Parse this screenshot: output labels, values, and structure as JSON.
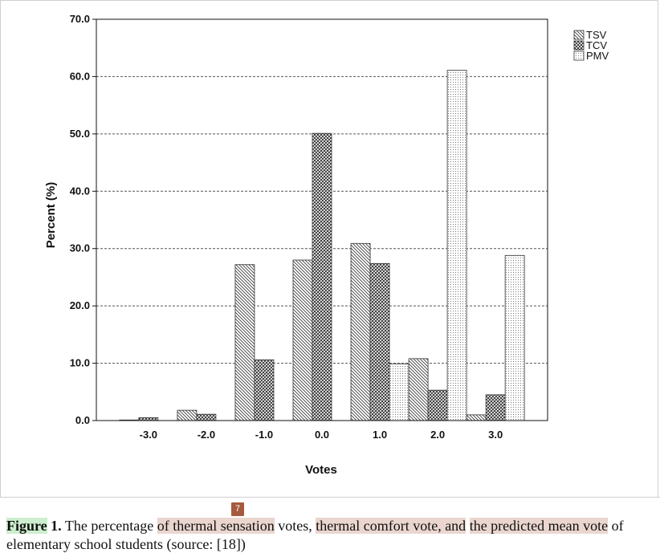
{
  "chart_data": {
    "type": "bar",
    "xlabel": "Votes",
    "ylabel": "Percent (%)",
    "categories": [
      "-3.0",
      "-2.0",
      "-1.0",
      "0.0",
      "1.0",
      "2.0",
      "3.0"
    ],
    "yticks": [
      "0.0",
      "10.0",
      "20.0",
      "30.0",
      "40.0",
      "50.0",
      "60.0",
      "70.0"
    ],
    "ylim": [
      0,
      70
    ],
    "grid": "horizontal dashed",
    "legend_position": "top-right",
    "series": [
      {
        "name": "TSV",
        "pattern": "diagonal-hatch",
        "values": [
          0.1,
          1.8,
          27.2,
          28.0,
          30.9,
          10.8,
          1.0
        ]
      },
      {
        "name": "TCV",
        "pattern": "cross-hatch",
        "values": [
          0.5,
          1.1,
          10.6,
          50.1,
          27.4,
          5.3,
          4.5
        ]
      },
      {
        "name": "PMV",
        "pattern": "dotted",
        "values": [
          0,
          0,
          0,
          0,
          9.9,
          61.1,
          28.8
        ]
      }
    ]
  },
  "caption": {
    "marker": "7",
    "figure_label": "Figure",
    "figure_number": " 1.",
    "text_1": " The percentage ",
    "highlight_1": "of thermal sensation",
    "text_2": " votes, ",
    "highlight_2": "thermal comfort vote, and",
    "text_3": " ",
    "highlight_3": "the predicted mean vote",
    "text_4": " of elementary school students (source: [18])"
  }
}
